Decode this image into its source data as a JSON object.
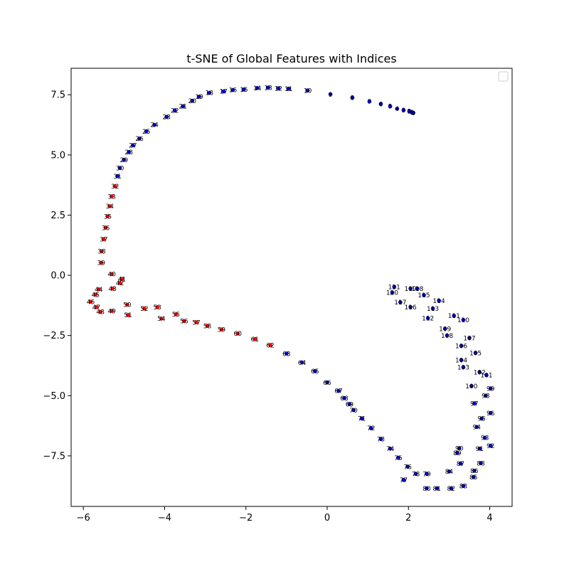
{
  "chart_data": {
    "type": "scatter",
    "title": "t-SNE of Global Features with Indices",
    "xlabel": "",
    "ylabel": "",
    "xlim": [
      -6.3,
      4.55
    ],
    "ylim": [
      -9.6,
      8.6
    ],
    "xticks": [
      -6,
      -4,
      -2,
      0,
      2,
      4
    ],
    "yticks": [
      -7.5,
      -5.0,
      -2.5,
      0.0,
      2.5,
      5.0,
      7.5
    ],
    "xtick_labels": [
      "−6",
      "−4",
      "−2",
      "0",
      "2",
      "4"
    ],
    "ytick_labels": [
      "−7.5",
      "−5.0",
      "−2.5",
      "0.0",
      "2.5",
      "5.0",
      "7.5"
    ],
    "grid": false,
    "legend": {
      "placement": "top-right",
      "entries": []
    },
    "colors": {
      "red": "#ff0000",
      "blue": "#0000cc",
      "marker_edge": "#000080"
    },
    "red_indices": [
      32,
      33,
      34,
      35,
      36,
      37,
      38,
      39,
      40,
      41,
      42,
      43,
      44,
      45,
      46,
      47,
      48,
      49,
      50,
      51,
      52,
      53,
      54,
      55,
      56,
      57,
      58,
      59,
      60,
      61,
      62
    ],
    "points": [
      [
        2.12,
        6.75
      ],
      [
        2.08,
        6.78
      ],
      [
        2.02,
        6.82
      ],
      [
        1.88,
        6.86
      ],
      [
        1.72,
        6.92
      ],
      [
        1.55,
        7.02
      ],
      [
        1.32,
        7.12
      ],
      [
        1.04,
        7.22
      ],
      [
        0.62,
        7.38
      ],
      [
        0.08,
        7.52
      ],
      [
        -0.48,
        7.68
      ],
      [
        -0.95,
        7.75
      ],
      [
        -1.2,
        7.77
      ],
      [
        -1.45,
        7.8
      ],
      [
        -1.72,
        7.78
      ],
      [
        -2.05,
        7.72
      ],
      [
        -2.32,
        7.7
      ],
      [
        -2.55,
        7.64
      ],
      [
        -2.9,
        7.58
      ],
      [
        -3.15,
        7.42
      ],
      [
        -3.32,
        7.25
      ],
      [
        -3.55,
        7.02
      ],
      [
        -3.75,
        6.85
      ],
      [
        -3.95,
        6.58
      ],
      [
        -4.25,
        6.25
      ],
      [
        -4.45,
        5.98
      ],
      [
        -4.62,
        5.68
      ],
      [
        -4.78,
        5.4
      ],
      [
        -4.88,
        5.12
      ],
      [
        -5.0,
        4.8
      ],
      [
        -5.1,
        4.46
      ],
      [
        -5.16,
        4.12
      ],
      [
        -5.22,
        3.7
      ],
      [
        -5.3,
        3.28
      ],
      [
        -5.35,
        2.87
      ],
      [
        -5.4,
        2.45
      ],
      [
        -5.45,
        1.98
      ],
      [
        -5.5,
        1.5
      ],
      [
        -5.55,
        1.0
      ],
      [
        -5.56,
        0.52
      ],
      [
        -5.3,
        0.05
      ],
      [
        -5.05,
        -0.15
      ],
      [
        -5.1,
        -0.32
      ],
      [
        -5.28,
        -0.55
      ],
      [
        -5.62,
        -0.58
      ],
      [
        -5.7,
        -0.8
      ],
      [
        -5.82,
        -1.1
      ],
      [
        -5.68,
        -1.32
      ],
      [
        -5.58,
        -1.52
      ],
      [
        -5.3,
        -1.48
      ],
      [
        -4.92,
        -1.22
      ],
      [
        -4.9,
        -1.65
      ],
      [
        -4.5,
        -1.38
      ],
      [
        -4.18,
        -1.32
      ],
      [
        -4.08,
        -1.8
      ],
      [
        -3.72,
        -1.62
      ],
      [
        -3.52,
        -1.9
      ],
      [
        -3.22,
        -1.95
      ],
      [
        -2.95,
        -2.1
      ],
      [
        -2.6,
        -2.25
      ],
      [
        -2.2,
        -2.42
      ],
      [
        -1.78,
        -2.65
      ],
      [
        -1.4,
        -2.9
      ],
      [
        -1.0,
        -3.25
      ],
      [
        -0.62,
        -3.62
      ],
      [
        -0.3,
        -3.98
      ],
      [
        0.0,
        -4.45
      ],
      [
        0.28,
        -4.8
      ],
      [
        0.42,
        -5.1
      ],
      [
        0.55,
        -5.35
      ],
      [
        0.65,
        -5.6
      ],
      [
        0.85,
        -5.95
      ],
      [
        1.08,
        -6.35
      ],
      [
        1.32,
        -6.8
      ],
      [
        1.55,
        -7.2
      ],
      [
        1.75,
        -7.58
      ],
      [
        1.98,
        -7.95
      ],
      [
        1.88,
        -8.5
      ],
      [
        2.18,
        -8.25
      ],
      [
        2.45,
        -8.25
      ],
      [
        2.45,
        -8.85
      ],
      [
        2.7,
        -8.85
      ],
      [
        3.05,
        -8.85
      ],
      [
        3.35,
        -8.75
      ],
      [
        3.0,
        -8.15
      ],
      [
        3.6,
        -8.38
      ],
      [
        3.62,
        -8.12
      ],
      [
        3.28,
        -7.82
      ],
      [
        3.78,
        -7.8
      ],
      [
        3.2,
        -7.38
      ],
      [
        3.25,
        -7.18
      ],
      [
        3.75,
        -7.2
      ],
      [
        4.02,
        -7.08
      ],
      [
        3.88,
        -6.75
      ],
      [
        3.68,
        -6.3
      ],
      [
        3.8,
        -5.95
      ],
      [
        4.02,
        -5.72
      ],
      [
        3.62,
        -5.32
      ],
      [
        3.9,
        -5.0
      ],
      [
        4.02,
        -4.7
      ],
      [
        3.55,
        -4.6
      ],
      [
        3.92,
        -4.15
      ],
      [
        3.75,
        -4.02
      ],
      [
        3.35,
        -3.82
      ],
      [
        3.3,
        -3.52
      ],
      [
        3.65,
        -3.22
      ],
      [
        3.3,
        -2.93
      ],
      [
        3.5,
        -2.6
      ],
      [
        2.95,
        -2.5
      ],
      [
        2.9,
        -2.22
      ],
      [
        3.35,
        -1.85
      ],
      [
        3.12,
        -1.68
      ],
      [
        2.48,
        -1.78
      ],
      [
        2.6,
        -1.38
      ],
      [
        2.75,
        -1.05
      ],
      [
        2.38,
        -0.82
      ],
      [
        2.05,
        -1.32
      ],
      [
        1.8,
        -1.12
      ],
      [
        2.22,
        -0.55
      ],
      [
        2.05,
        -0.55
      ],
      [
        1.6,
        -0.72
      ],
      [
        1.65,
        -0.48
      ]
    ]
  }
}
